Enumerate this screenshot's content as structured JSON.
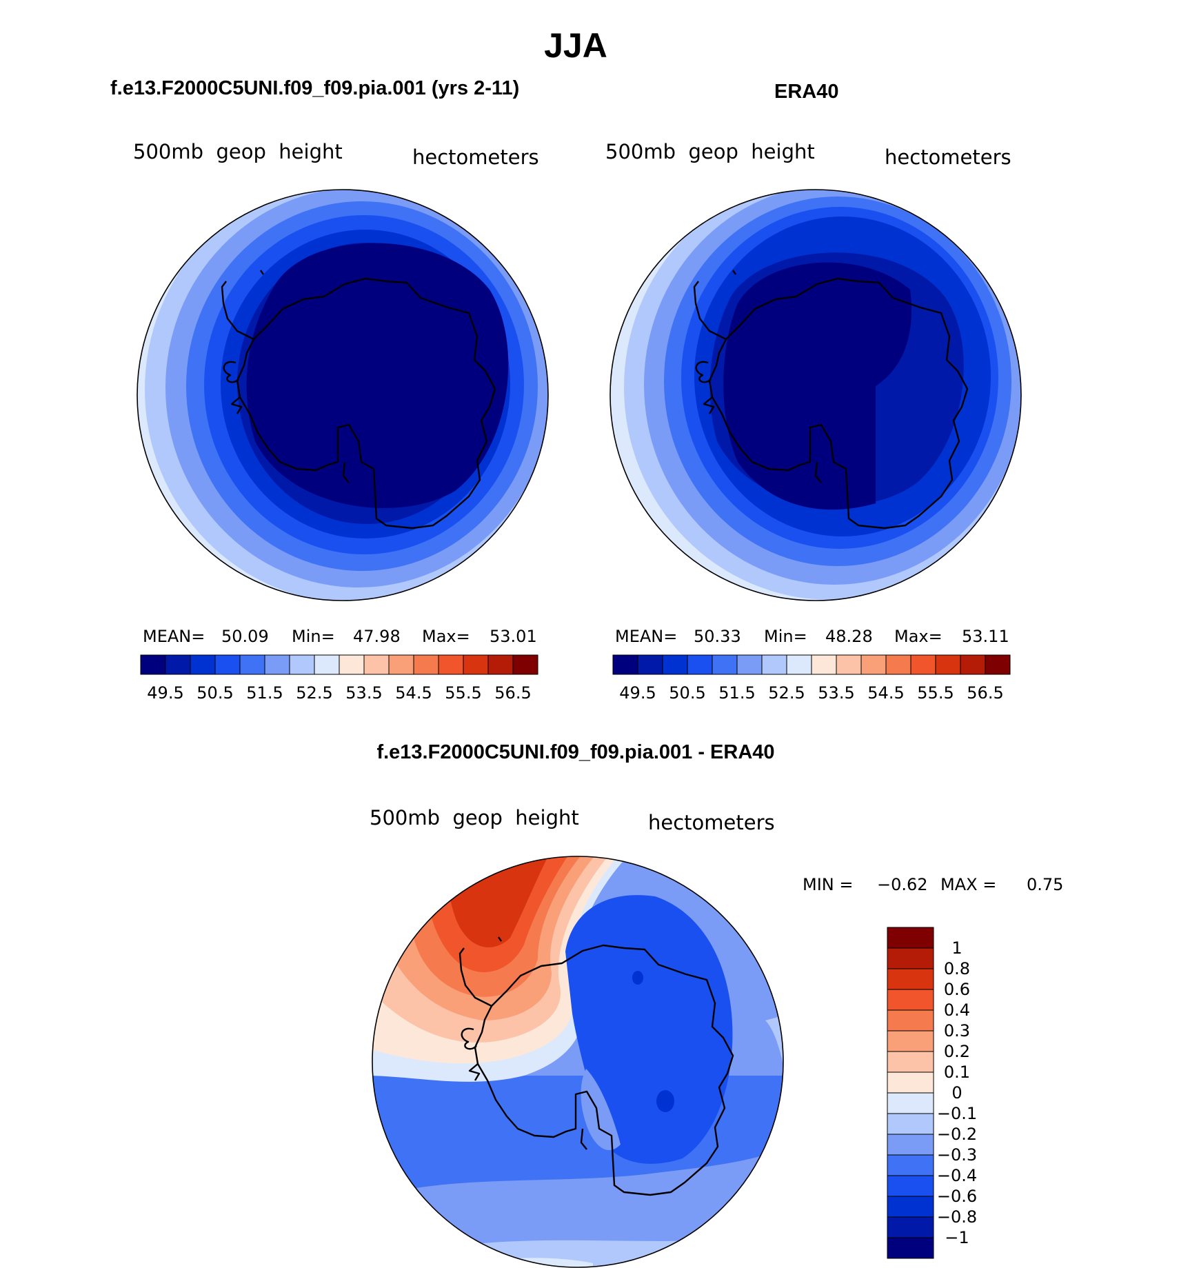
{
  "title": "JJA",
  "panels": {
    "model": {
      "case_title": "f.e13.F2000C5UNI.f09_f09.pia.001 (yrs 2-11)",
      "variable": "500mb  geop  height",
      "units": "hectometers",
      "mean_label": "MEAN=",
      "mean": "50.09",
      "min_label": "Min=",
      "min": "47.98",
      "max_label": "Max=",
      "max": "53.01"
    },
    "obs": {
      "case_title": "ERA40",
      "variable": "500mb  geop  height",
      "units": "hectometers",
      "mean_label": "MEAN=",
      "mean": "50.33",
      "min_label": "Min=",
      "min": "48.28",
      "max_label": "Max=",
      "max": "53.11"
    },
    "diff": {
      "case_title": "f.e13.F2000C5UNI.f09_f09.pia.001 - ERA40",
      "variable": "500mb  geop  height",
      "units": "hectometers",
      "min_label": "MIN =",
      "min": "−0.62",
      "max_label": "MAX =",
      "max": "0.75"
    }
  },
  "colorbar_abs": {
    "colors": [
      "#00007f",
      "#0019a8",
      "#0032d2",
      "#1a50f0",
      "#3f72f5",
      "#7a9cf7",
      "#b0c8fb",
      "#dce9fd",
      "#fde7d8",
      "#fcc3a8",
      "#f9a078",
      "#f57a4e",
      "#f0552c",
      "#d8340f",
      "#b51c08",
      "#7f0000"
    ],
    "labels": [
      "49.5",
      "50.5",
      "51.5",
      "52.5",
      "53.5",
      "54.5",
      "55.5",
      "56.5"
    ]
  },
  "colorbar_diff": {
    "colors": [
      "#7f0000",
      "#b51c08",
      "#d8340f",
      "#f0552c",
      "#f57a4e",
      "#f9a078",
      "#fcc3a8",
      "#fde7d8",
      "#dce9fd",
      "#b0c8fb",
      "#7a9cf7",
      "#3f72f5",
      "#1a50f0",
      "#0032d2",
      "#0019a8",
      "#00007f"
    ],
    "labels": [
      "1",
      "0.8",
      "0.6",
      "0.4",
      "0.3",
      "0.2",
      "0.1",
      "0",
      "−0.1",
      "−0.2",
      "−0.3",
      "−0.4",
      "−0.6",
      "−0.8",
      "−1"
    ]
  }
}
